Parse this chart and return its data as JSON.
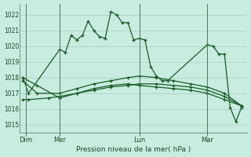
{
  "xlabel": "Pression niveau de la mer( hPa )",
  "bg_color": "#c8ece0",
  "grid_color": "#a0c8b8",
  "line_color": "#1a5c28",
  "ylim": [
    1014.5,
    1022.7
  ],
  "yticks": [
    1015,
    1016,
    1017,
    1018,
    1019,
    1020,
    1021,
    1022
  ],
  "day_labels": [
    "Dim",
    "Mer",
    "Lun",
    "Mar"
  ],
  "day_positions": [
    2,
    14,
    42,
    66
  ],
  "vline_positions": [
    2,
    14,
    42,
    66
  ],
  "xlim": [
    0,
    80
  ],
  "lines": [
    {
      "x": [
        1,
        3,
        14,
        16,
        18,
        20,
        22,
        24,
        26,
        28,
        30,
        32,
        34,
        36,
        38,
        40,
        42,
        44,
        46,
        48,
        50,
        52,
        66,
        68,
        70,
        72,
        74,
        76,
        78
      ],
      "y": [
        1018.0,
        1017.0,
        1019.8,
        1019.6,
        1020.7,
        1020.4,
        1020.7,
        1021.6,
        1021.0,
        1020.6,
        1020.5,
        1022.2,
        1022.0,
        1021.5,
        1021.5,
        1020.4,
        1020.5,
        1020.4,
        1018.7,
        1018.1,
        1017.8,
        1017.8,
        1020.1,
        1020.0,
        1019.5,
        1019.5,
        1016.1,
        1015.2,
        1016.1
      ]
    },
    {
      "x": [
        1,
        3,
        10,
        14,
        20,
        26,
        32,
        38,
        42,
        48,
        54,
        60,
        66,
        72,
        78
      ],
      "y": [
        1016.6,
        1016.6,
        1016.7,
        1016.8,
        1017.0,
        1017.2,
        1017.4,
        1017.5,
        1017.6,
        1017.6,
        1017.5,
        1017.4,
        1017.2,
        1016.8,
        1016.2
      ]
    },
    {
      "x": [
        1,
        6,
        14,
        20,
        26,
        32,
        38,
        42,
        48,
        54,
        60,
        66,
        72,
        78
      ],
      "y": [
        1017.8,
        1017.0,
        1017.0,
        1017.3,
        1017.6,
        1017.8,
        1018.0,
        1018.1,
        1018.0,
        1017.8,
        1017.6,
        1017.4,
        1017.0,
        1016.2
      ]
    },
    {
      "x": [
        1,
        6,
        14,
        20,
        26,
        32,
        38,
        42,
        48,
        54,
        60,
        66,
        72,
        78
      ],
      "y": [
        1018.0,
        1017.5,
        1016.7,
        1017.0,
        1017.3,
        1017.5,
        1017.6,
        1017.5,
        1017.4,
        1017.3,
        1017.2,
        1017.0,
        1016.6,
        1016.2
      ]
    }
  ]
}
